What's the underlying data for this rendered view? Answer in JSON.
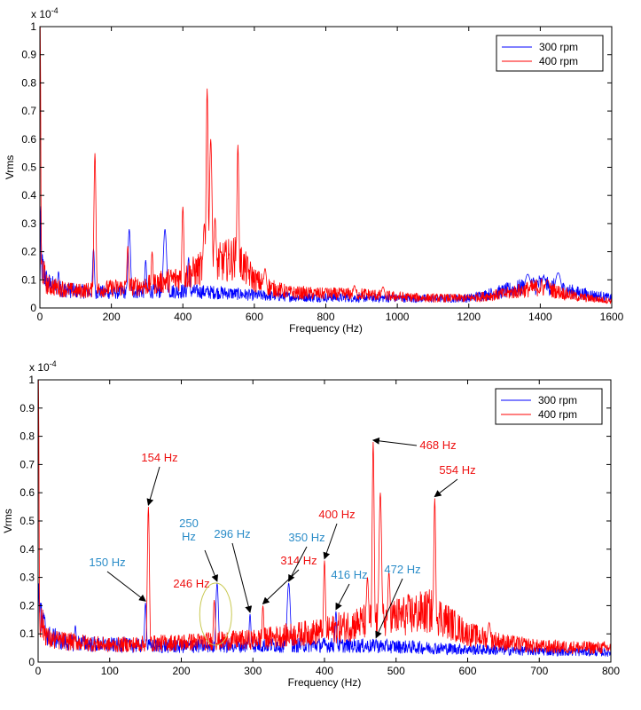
{
  "colors": {
    "rpm300": "#0000ff",
    "rpm400": "#ff0000",
    "rpm300_label": "#2a8cc8",
    "rpm400_label": "#ee1111",
    "circle": "#c8c850"
  },
  "chart_data": [
    {
      "type": "line",
      "title": "",
      "xlabel": "Frequency (Hz)",
      "ylabel": "Vrms",
      "exponent_label": "x 10",
      "exponent_power": "-4",
      "xlim": [
        0,
        1600
      ],
      "ylim": [
        0,
        1
      ],
      "xticks": [
        "0",
        "200",
        "400",
        "600",
        "800",
        "1000",
        "1200",
        "1400",
        "1600"
      ],
      "yticks": [
        "0",
        "0.1",
        "0.2",
        "0.3",
        "0.4",
        "0.5",
        "0.6",
        "0.7",
        "0.8",
        "0.9",
        "1"
      ],
      "legend": {
        "position": "top-right",
        "entries": [
          "300 rpm",
          "400 rpm"
        ]
      },
      "series": [
        {
          "name": "300 rpm",
          "color": "#0000ff",
          "base": [
            [
              0,
              0.06
            ],
            [
              2,
              0.3
            ],
            [
              5,
              0.15
            ],
            [
              20,
              0.09
            ],
            [
              50,
              0.07
            ],
            [
              100,
              0.06
            ],
            [
              200,
              0.055
            ],
            [
              300,
              0.06
            ],
            [
              400,
              0.06
            ],
            [
              500,
              0.055
            ],
            [
              600,
              0.045
            ],
            [
              700,
              0.04
            ],
            [
              800,
              0.038
            ],
            [
              900,
              0.036
            ],
            [
              1000,
              0.035
            ],
            [
              1100,
              0.033
            ],
            [
              1200,
              0.035
            ],
            [
              1300,
              0.06
            ],
            [
              1400,
              0.085
            ],
            [
              1500,
              0.055
            ],
            [
              1600,
              0.035
            ]
          ],
          "peaks": [
            [
              52,
              0.13,
              3
            ],
            [
              150,
              0.21,
              3
            ],
            [
              250,
              0.28,
              4
            ],
            [
              296,
              0.17,
              3
            ],
            [
              350,
              0.28,
              5
            ],
            [
              416,
              0.18,
              3
            ],
            [
              1365,
              0.12,
              10
            ],
            [
              1410,
              0.11,
              8
            ],
            [
              1450,
              0.125,
              10
            ]
          ]
        },
        {
          "name": "400 rpm",
          "color": "#ff0000",
          "base": [
            [
              0,
              0.08
            ],
            [
              5,
              0.15
            ],
            [
              20,
              0.08
            ],
            [
              100,
              0.06
            ],
            [
              200,
              0.07
            ],
            [
              300,
              0.08
            ],
            [
              400,
              0.11
            ],
            [
              450,
              0.14
            ],
            [
              500,
              0.16
            ],
            [
              550,
              0.18
            ],
            [
              600,
              0.1
            ],
            [
              650,
              0.07
            ],
            [
              700,
              0.055
            ],
            [
              800,
              0.05
            ],
            [
              900,
              0.05
            ],
            [
              1000,
              0.04
            ],
            [
              1100,
              0.035
            ],
            [
              1200,
              0.035
            ],
            [
              1300,
              0.05
            ],
            [
              1400,
              0.075
            ],
            [
              1500,
              0.04
            ],
            [
              1600,
              0.025
            ]
          ],
          "peaks": [
            [
              1,
              1.0,
              1.5
            ],
            [
              154,
              0.55,
              3
            ],
            [
              246,
              0.22,
              3
            ],
            [
              314,
              0.2,
              3
            ],
            [
              400,
              0.36,
              3
            ],
            [
              460,
              0.3,
              4
            ],
            [
              468,
              0.78,
              3
            ],
            [
              478,
              0.6,
              4
            ],
            [
              490,
              0.32,
              4
            ],
            [
              554,
              0.58,
              3
            ],
            [
              630,
              0.14,
              5
            ],
            [
              800,
              0.07,
              4
            ],
            [
              880,
              0.08,
              5
            ],
            [
              960,
              0.075,
              6
            ],
            [
              1420,
              0.1,
              8
            ]
          ]
        }
      ]
    },
    {
      "type": "line",
      "title": "",
      "xlabel": "Frequency (Hz)",
      "ylabel": "Vrms",
      "exponent_label": "x 10",
      "exponent_power": "-4",
      "xlim": [
        0,
        800
      ],
      "ylim": [
        0,
        1
      ],
      "xticks": [
        "0",
        "100",
        "200",
        "300",
        "400",
        "500",
        "600",
        "700",
        "800"
      ],
      "yticks": [
        "0",
        "0.1",
        "0.2",
        "0.3",
        "0.4",
        "0.5",
        "0.6",
        "0.7",
        "0.8",
        "0.9",
        "1"
      ],
      "legend": {
        "position": "top-right",
        "entries": [
          "300 rpm",
          "400 rpm"
        ]
      },
      "series": [
        {
          "name": "300 rpm",
          "color": "#0000ff",
          "base": [
            [
              0,
              0.06
            ],
            [
              1,
              0.3
            ],
            [
              4,
              0.15
            ],
            [
              15,
              0.09
            ],
            [
              40,
              0.07
            ],
            [
              100,
              0.06
            ],
            [
              200,
              0.055
            ],
            [
              300,
              0.06
            ],
            [
              400,
              0.06
            ],
            [
              500,
              0.055
            ],
            [
              600,
              0.045
            ],
            [
              700,
              0.04
            ],
            [
              800,
              0.035
            ]
          ],
          "peaks": [
            [
              52,
              0.13,
              1.5
            ],
            [
              120,
              0.09,
              1.5
            ],
            [
              150,
              0.21,
              1.5
            ],
            [
              250,
              0.28,
              2
            ],
            [
              296,
              0.17,
              1.5
            ],
            [
              350,
              0.28,
              2.5
            ],
            [
              416,
              0.18,
              1.5
            ],
            [
              472,
              0.08,
              1.5
            ]
          ]
        },
        {
          "name": "400 rpm",
          "color": "#ff0000",
          "base": [
            [
              0,
              0.08
            ],
            [
              3,
              0.15
            ],
            [
              15,
              0.08
            ],
            [
              100,
              0.06
            ],
            [
              200,
              0.07
            ],
            [
              300,
              0.08
            ],
            [
              400,
              0.11
            ],
            [
              450,
              0.14
            ],
            [
              500,
              0.16
            ],
            [
              550,
              0.18
            ],
            [
              600,
              0.1
            ],
            [
              650,
              0.07
            ],
            [
              700,
              0.055
            ],
            [
              800,
              0.05
            ]
          ],
          "peaks": [
            [
              0.5,
              1.0,
              0.8
            ],
            [
              154,
              0.55,
              1.5
            ],
            [
              246,
              0.22,
              1.5
            ],
            [
              314,
              0.2,
              1.5
            ],
            [
              400,
              0.36,
              1.5
            ],
            [
              460,
              0.3,
              2
            ],
            [
              468,
              0.78,
              1.5
            ],
            [
              478,
              0.6,
              2
            ],
            [
              490,
              0.32,
              2
            ],
            [
              554,
              0.58,
              1.5
            ],
            [
              630,
              0.14,
              2.5
            ]
          ]
        }
      ],
      "annotations": [
        {
          "text": "154 Hz",
          "series": "400 rpm",
          "x": 154,
          "y": 0.55
        },
        {
          "text": "150 Hz",
          "series": "300 rpm",
          "x": 150,
          "y": 0.21
        },
        {
          "text": "250 Hz",
          "series": "300 rpm",
          "x": 250,
          "y": 0.28
        },
        {
          "text": "246 Hz",
          "series": "400 rpm",
          "x": 246,
          "y": 0.22
        },
        {
          "text": "296 Hz",
          "series": "300 rpm",
          "x": 296,
          "y": 0.17
        },
        {
          "text": "314 Hz",
          "series": "400 rpm",
          "x": 314,
          "y": 0.2
        },
        {
          "text": "350 Hz",
          "series": "300 rpm",
          "x": 350,
          "y": 0.28
        },
        {
          "text": "400 Hz",
          "series": "400 rpm",
          "x": 400,
          "y": 0.36
        },
        {
          "text": "416 Hz",
          "series": "300 rpm",
          "x": 416,
          "y": 0.18
        },
        {
          "text": "468 Hz",
          "series": "400 rpm",
          "x": 468,
          "y": 0.78
        },
        {
          "text": "472 Hz",
          "series": "300 rpm",
          "x": 472,
          "y": 0.08
        },
        {
          "text": "554 Hz",
          "series": "400 rpm",
          "x": 554,
          "y": 0.58
        }
      ],
      "highlight_circle": {
        "x": 248,
        "y": 0.17
      }
    }
  ]
}
